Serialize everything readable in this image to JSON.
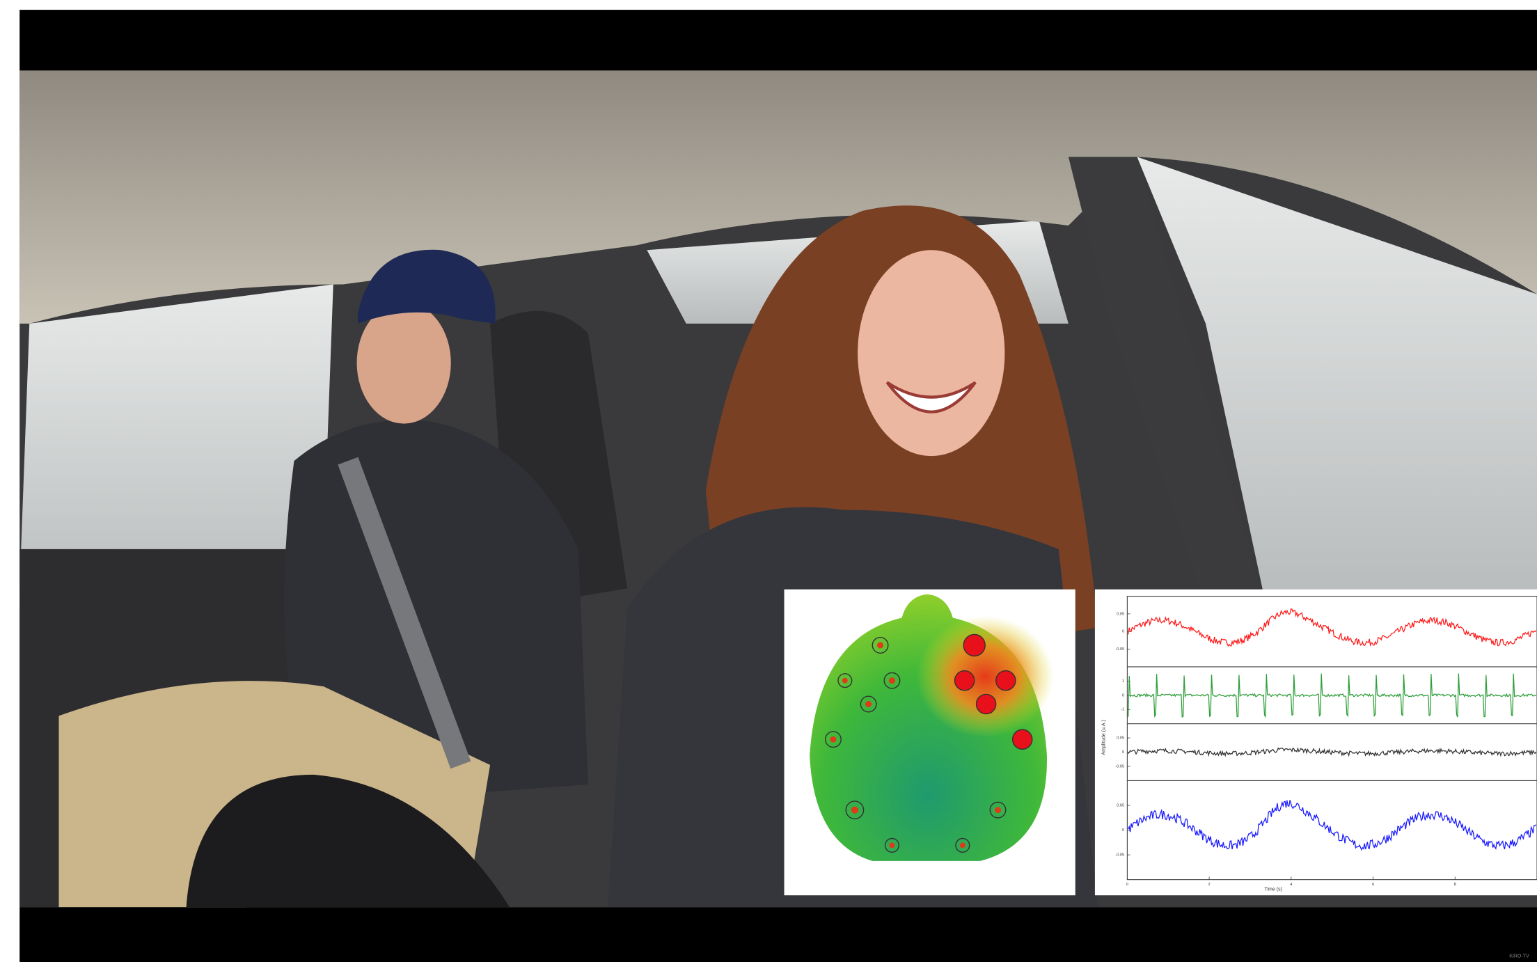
{
  "video": {
    "watermark": "KIRO-TV"
  },
  "signal_plot": {
    "y_label": "Amplitude (u.A.)",
    "x_label": "Time (s)",
    "x_ticks": [
      0,
      2,
      4,
      6,
      8
    ],
    "channels": [
      {
        "color": "#ff1a1a",
        "ticks": [
          "0.05",
          "0",
          "-0.05"
        ]
      },
      {
        "color": "#2e9e3a",
        "ticks": [
          "1",
          "0",
          "-1"
        ]
      },
      {
        "color": "#333333",
        "ticks": [
          "0.05",
          "0",
          "-0.05"
        ]
      },
      {
        "color": "#1a1aff",
        "ticks": [
          "0.05",
          "0",
          "-0.05"
        ]
      }
    ]
  }
}
